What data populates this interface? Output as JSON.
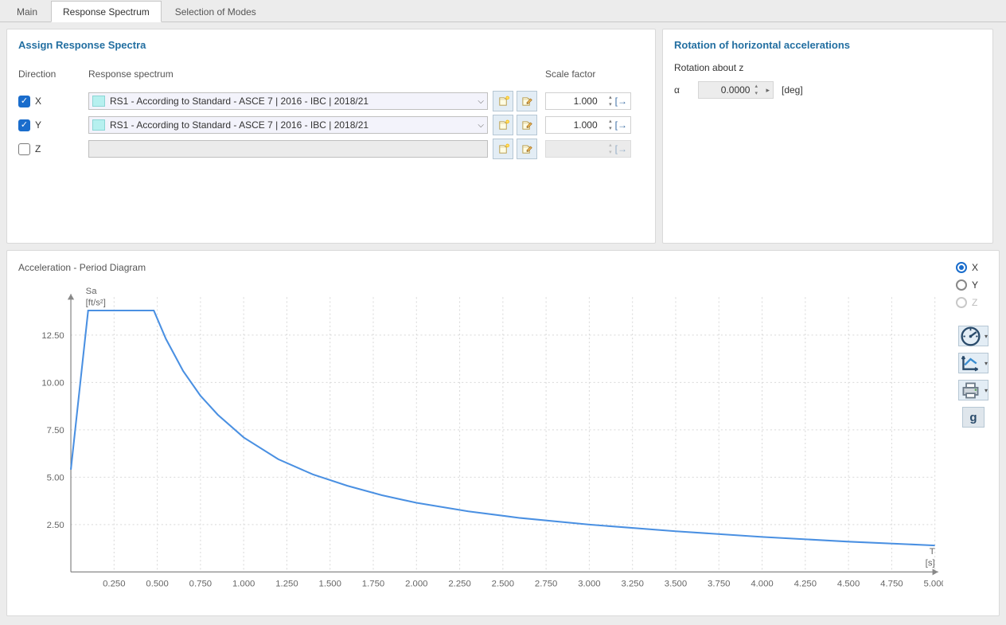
{
  "tabs": [
    {
      "label": "Main",
      "active": false
    },
    {
      "label": "Response Spectrum",
      "active": true
    },
    {
      "label": "Selection of Modes",
      "active": false
    }
  ],
  "assign": {
    "title": "Assign Response Spectra",
    "headers": {
      "direction": "Direction",
      "spectrum": "Response spectrum",
      "scale": "Scale factor"
    },
    "rows": [
      {
        "dir": "X",
        "checked": true,
        "spectrum": "RS1 - According to Standard - ASCE 7 | 2016 - IBC | 2018/21",
        "scale": "1.000",
        "enabled": true
      },
      {
        "dir": "Y",
        "checked": true,
        "spectrum": "RS1 - According to Standard - ASCE 7 | 2016 - IBC | 2018/21",
        "scale": "1.000",
        "enabled": true
      },
      {
        "dir": "Z",
        "checked": false,
        "spectrum": "",
        "scale": "",
        "enabled": false
      }
    ]
  },
  "rotation": {
    "title": "Rotation of horizontal accelerations",
    "label": "Rotation about z",
    "symbol": "α",
    "value": "0.0000",
    "unit": "[deg]"
  },
  "chart": {
    "title": "Acceleration - Period Diagram",
    "y_axis": {
      "label_line1": "Sa",
      "label_line2": "[ft/s²]",
      "ticks": [
        2.5,
        5.0,
        7.5,
        10.0,
        12.5
      ]
    },
    "x_axis": {
      "label_line1": "T",
      "label_line2": "[s]",
      "ticks": [
        0.25,
        0.5,
        0.75,
        1.0,
        1.25,
        1.5,
        1.75,
        2.0,
        2.25,
        2.5,
        2.75,
        3.0,
        3.25,
        3.5,
        3.75,
        4.0,
        4.25,
        4.5,
        4.75,
        5.0
      ]
    },
    "xmin": 0.0,
    "xmax": 5.0,
    "ymin": 0.0,
    "ymax": 14.5,
    "line_color": "#4a90e2",
    "line_width": 2,
    "grid_color": "#d9d9d9",
    "axis_color": "#888888",
    "data": [
      [
        0.0,
        5.4
      ],
      [
        0.1,
        13.8
      ],
      [
        0.48,
        13.8
      ],
      [
        0.55,
        12.3
      ],
      [
        0.65,
        10.6
      ],
      [
        0.75,
        9.3
      ],
      [
        0.85,
        8.3
      ],
      [
        1.0,
        7.1
      ],
      [
        1.2,
        5.95
      ],
      [
        1.4,
        5.15
      ],
      [
        1.6,
        4.55
      ],
      [
        1.8,
        4.05
      ],
      [
        2.0,
        3.65
      ],
      [
        2.3,
        3.2
      ],
      [
        2.6,
        2.85
      ],
      [
        3.0,
        2.5
      ],
      [
        3.5,
        2.15
      ],
      [
        4.0,
        1.85
      ],
      [
        4.5,
        1.6
      ],
      [
        5.0,
        1.4
      ]
    ],
    "radios": [
      {
        "label": "X",
        "selected": true,
        "disabled": false
      },
      {
        "label": "Y",
        "selected": false,
        "disabled": false
      },
      {
        "label": "Z",
        "selected": false,
        "disabled": true
      }
    ],
    "g_label": "g"
  }
}
